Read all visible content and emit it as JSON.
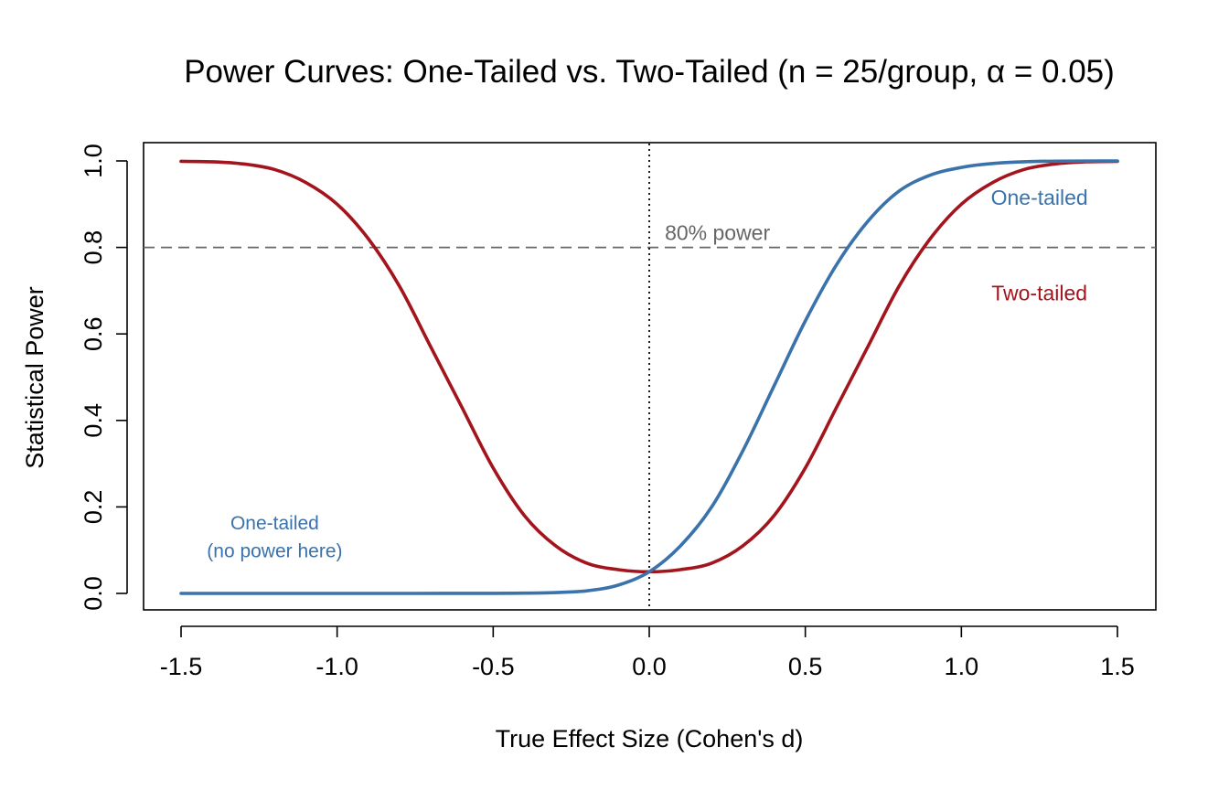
{
  "chart_data": {
    "type": "line",
    "title": "Power Curves: One-Tailed vs. Two-Tailed (n = 25/group, α = 0.05)",
    "xlabel": "True Effect Size (Cohen's d)",
    "ylabel": "Statistical Power",
    "xlim": [
      -1.5,
      1.5
    ],
    "ylim": [
      0,
      1
    ],
    "x_ticks": [
      "-1.5",
      "-1.0",
      "-0.5",
      "0.0",
      "0.5",
      "1.0",
      "1.5"
    ],
    "y_ticks": [
      "0.0",
      "0.2",
      "0.4",
      "0.6",
      "0.8",
      "1.0"
    ],
    "n_per_group": 25,
    "alpha": 0.05,
    "reference_lines": {
      "horizontal": {
        "y": 0.8,
        "style": "dashed",
        "label": "80% power",
        "color": "#666666"
      },
      "vertical": {
        "x": 0.0,
        "style": "dotted",
        "color": "#000000"
      }
    },
    "series": [
      {
        "name": "One-tailed",
        "color": "#3A72AB",
        "x": [
          -1.5,
          -1.25,
          -1.0,
          -0.75,
          -0.5,
          -0.4,
          -0.3,
          -0.2,
          -0.1,
          0.0,
          0.1,
          0.2,
          0.3,
          0.4,
          0.5,
          0.6,
          0.7,
          0.8,
          0.9,
          1.0,
          1.1,
          1.25,
          1.5
        ],
        "values": [
          0.0,
          0.0,
          0.0,
          0.0,
          0.0002,
          0.0006,
          0.002,
          0.006,
          0.019,
          0.05,
          0.11,
          0.2,
          0.33,
          0.48,
          0.63,
          0.76,
          0.86,
          0.93,
          0.967,
          0.985,
          0.994,
          0.999,
          1.0
        ]
      },
      {
        "name": "Two-tailed",
        "color": "#A3141C",
        "x": [
          -1.5,
          -1.4,
          -1.3,
          -1.2,
          -1.1,
          -1.0,
          -0.9,
          -0.8,
          -0.7,
          -0.6,
          -0.5,
          -0.4,
          -0.3,
          -0.2,
          -0.1,
          0.0,
          0.1,
          0.2,
          0.3,
          0.4,
          0.5,
          0.6,
          0.7,
          0.8,
          0.9,
          1.0,
          1.1,
          1.2,
          1.3,
          1.4,
          1.5
        ],
        "values": [
          0.999,
          0.998,
          0.993,
          0.98,
          0.95,
          0.9,
          0.82,
          0.71,
          0.57,
          0.43,
          0.29,
          0.18,
          0.11,
          0.07,
          0.055,
          0.05,
          0.055,
          0.07,
          0.11,
          0.18,
          0.29,
          0.43,
          0.57,
          0.71,
          0.82,
          0.9,
          0.95,
          0.98,
          0.993,
          0.998,
          0.999
        ]
      }
    ],
    "annotations": [
      {
        "text": "One-tailed",
        "x": 1.25,
        "y": 0.915,
        "color": "#3A72AB"
      },
      {
        "text": "Two-tailed",
        "x": 1.25,
        "y": 0.695,
        "color": "#A3141C"
      },
      {
        "text": "One-tailed",
        "x": -1.2,
        "y": 0.165,
        "color": "#3A72AB"
      },
      {
        "text": "(no power here)",
        "x": -1.2,
        "y": 0.1,
        "color": "#3A72AB"
      }
    ]
  }
}
